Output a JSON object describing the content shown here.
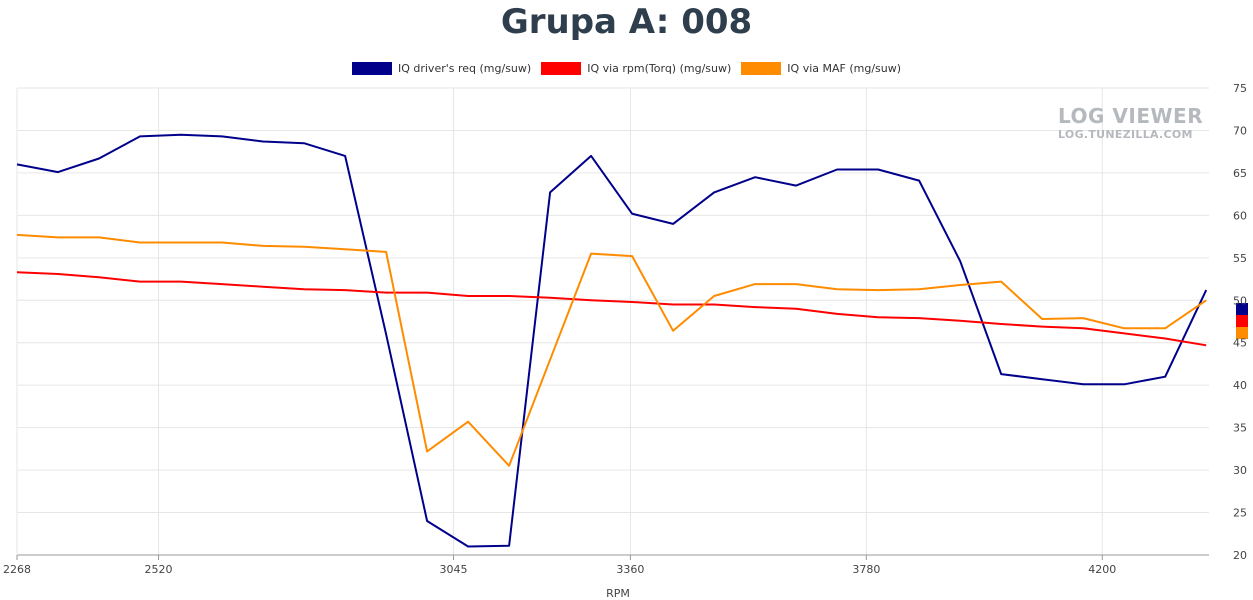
{
  "chart_data": {
    "type": "line",
    "title": "Grupa A: 008",
    "xlabel": "RPM",
    "ylabel": "",
    "xlim": [
      2268,
      4390
    ],
    "ylim": [
      20,
      75
    ],
    "x_ticks": [
      2268,
      2520,
      3045,
      3360,
      3780,
      4200
    ],
    "y_ticks": [
      20,
      25,
      30,
      35,
      40,
      45,
      50,
      55,
      60,
      65,
      70,
      75
    ],
    "grid": true,
    "legend_position": "top-center",
    "series": [
      {
        "name": "IQ driver's req (mg/suw)",
        "color": "#00008b",
        "points": [
          [
            2268,
            66.0
          ],
          [
            2341,
            65.1
          ],
          [
            2414,
            66.7
          ],
          [
            2487,
            69.3
          ],
          [
            2560,
            69.5
          ],
          [
            2633,
            69.3
          ],
          [
            2706,
            68.7
          ],
          [
            2779,
            68.5
          ],
          [
            2852,
            67.0
          ],
          [
            2925,
            46.0
          ],
          [
            2998,
            24.0
          ],
          [
            3071,
            21.0
          ],
          [
            3144,
            21.1
          ],
          [
            3217,
            62.7
          ],
          [
            3290,
            67.0
          ],
          [
            3363,
            60.2
          ],
          [
            3436,
            59.0
          ],
          [
            3509,
            62.7
          ],
          [
            3582,
            64.5
          ],
          [
            3655,
            63.5
          ],
          [
            3728,
            65.4
          ],
          [
            3801,
            65.4
          ],
          [
            3874,
            64.1
          ],
          [
            3947,
            54.6
          ],
          [
            4020,
            41.3
          ],
          [
            4093,
            40.7
          ],
          [
            4166,
            40.1
          ],
          [
            4239,
            40.1
          ],
          [
            4312,
            41.0
          ],
          [
            4385,
            51.2
          ]
        ]
      },
      {
        "name": "IQ via rpm(Torq) (mg/suw)",
        "color": "#ff0000",
        "points": [
          [
            2268,
            53.3
          ],
          [
            2341,
            53.1
          ],
          [
            2414,
            52.7
          ],
          [
            2487,
            52.2
          ],
          [
            2560,
            52.2
          ],
          [
            2633,
            51.9
          ],
          [
            2706,
            51.6
          ],
          [
            2779,
            51.3
          ],
          [
            2852,
            51.2
          ],
          [
            2925,
            50.9
          ],
          [
            2998,
            50.9
          ],
          [
            3071,
            50.5
          ],
          [
            3144,
            50.5
          ],
          [
            3217,
            50.3
          ],
          [
            3290,
            50.0
          ],
          [
            3363,
            49.8
          ],
          [
            3436,
            49.5
          ],
          [
            3509,
            49.5
          ],
          [
            3582,
            49.2
          ],
          [
            3655,
            49.0
          ],
          [
            3728,
            48.4
          ],
          [
            3801,
            48.0
          ],
          [
            3874,
            47.9
          ],
          [
            3947,
            47.6
          ],
          [
            4020,
            47.2
          ],
          [
            4093,
            46.9
          ],
          [
            4166,
            46.7
          ],
          [
            4239,
            46.1
          ],
          [
            4312,
            45.5
          ],
          [
            4385,
            44.7
          ]
        ]
      },
      {
        "name": "IQ via MAF (mg/suw)",
        "color": "#ff8c00",
        "points": [
          [
            2268,
            57.7
          ],
          [
            2341,
            57.4
          ],
          [
            2414,
            57.4
          ],
          [
            2487,
            56.8
          ],
          [
            2560,
            56.8
          ],
          [
            2633,
            56.8
          ],
          [
            2706,
            56.4
          ],
          [
            2779,
            56.3
          ],
          [
            2852,
            56.0
          ],
          [
            2925,
            55.7
          ],
          [
            2998,
            32.2
          ],
          [
            3071,
            35.7
          ],
          [
            3144,
            30.5
          ],
          [
            3217,
            43.0
          ],
          [
            3290,
            55.5
          ],
          [
            3363,
            55.2
          ],
          [
            3436,
            46.4
          ],
          [
            3509,
            50.5
          ],
          [
            3582,
            51.9
          ],
          [
            3655,
            51.9
          ],
          [
            3728,
            51.3
          ],
          [
            3801,
            51.2
          ],
          [
            3874,
            51.3
          ],
          [
            3947,
            51.8
          ],
          [
            4020,
            52.2
          ],
          [
            4093,
            47.8
          ],
          [
            4166,
            47.9
          ],
          [
            4239,
            46.7
          ],
          [
            4312,
            46.7
          ],
          [
            4385,
            50.0
          ]
        ]
      }
    ]
  },
  "watermark": {
    "main": "LOG VIEWER",
    "sub": "LOG.TUNEZILLA.COM"
  }
}
